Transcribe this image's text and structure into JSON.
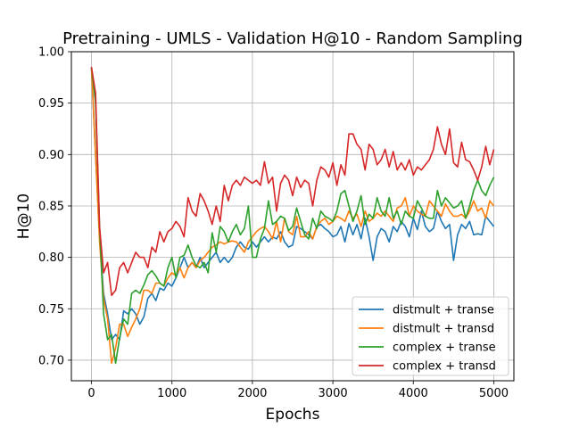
{
  "chart_data": {
    "type": "line",
    "title": "Pretraining - UMLS - Validation H@10 - Random Sampling",
    "xlabel": "Epochs",
    "ylabel": "H@10",
    "xlim": [
      -250,
      5250
    ],
    "ylim": [
      0.68,
      1.0
    ],
    "xticks": [
      0,
      1000,
      2000,
      3000,
      4000,
      5000
    ],
    "yticks": [
      0.7,
      0.75,
      0.8,
      0.85,
      0.9,
      0.95,
      1.0
    ],
    "xtick_labels": [
      "0",
      "1000",
      "2000",
      "3000",
      "4000",
      "5000"
    ],
    "ytick_labels": [
      "0.70",
      "0.75",
      "0.80",
      "0.85",
      "0.90",
      "0.95",
      "1.00"
    ],
    "grid": true,
    "legend_position": "lower-right",
    "x": [
      0,
      50,
      100,
      150,
      200,
      250,
      300,
      350,
      400,
      450,
      500,
      550,
      600,
      650,
      700,
      750,
      800,
      850,
      900,
      950,
      1000,
      1050,
      1100,
      1150,
      1200,
      1250,
      1300,
      1350,
      1400,
      1450,
      1500,
      1550,
      1600,
      1650,
      1700,
      1750,
      1800,
      1850,
      1900,
      1950,
      2000,
      2050,
      2100,
      2150,
      2200,
      2250,
      2300,
      2350,
      2400,
      2450,
      2500,
      2550,
      2600,
      2650,
      2700,
      2750,
      2800,
      2850,
      2900,
      2950,
      3000,
      3050,
      3100,
      3150,
      3200,
      3250,
      3300,
      3350,
      3400,
      3450,
      3500,
      3550,
      3600,
      3650,
      3700,
      3750,
      3800,
      3850,
      3900,
      3950,
      4000,
      4050,
      4100,
      4150,
      4200,
      4250,
      4300,
      4350,
      4400,
      4450,
      4500,
      4550,
      4600,
      4650,
      4700,
      4750,
      4800,
      4850,
      4900,
      4950,
      5000
    ],
    "series": [
      {
        "name": "distmult + transe",
        "color": "#1f77b4",
        "values": [
          0.985,
          0.9,
          0.82,
          0.765,
          0.745,
          0.72,
          0.725,
          0.72,
          0.748,
          0.745,
          0.75,
          0.745,
          0.735,
          0.742,
          0.76,
          0.765,
          0.758,
          0.77,
          0.768,
          0.775,
          0.772,
          0.78,
          0.79,
          0.8,
          0.79,
          0.795,
          0.79,
          0.8,
          0.79,
          0.795,
          0.8,
          0.805,
          0.795,
          0.8,
          0.795,
          0.8,
          0.81,
          0.815,
          0.81,
          0.808,
          0.815,
          0.81,
          0.815,
          0.82,
          0.815,
          0.82,
          0.818,
          0.825,
          0.815,
          0.81,
          0.812,
          0.83,
          0.828,
          0.825,
          0.822,
          0.818,
          0.83,
          0.832,
          0.828,
          0.825,
          0.82,
          0.822,
          0.83,
          0.815,
          0.833,
          0.822,
          0.832,
          0.818,
          0.838,
          0.82,
          0.797,
          0.82,
          0.828,
          0.825,
          0.815,
          0.83,
          0.825,
          0.835,
          0.83,
          0.82,
          0.838,
          0.827,
          0.845,
          0.83,
          0.825,
          0.828,
          0.845,
          0.835,
          0.828,
          0.832,
          0.797,
          0.822,
          0.832,
          0.828,
          0.835,
          0.822,
          0.823,
          0.822,
          0.84,
          0.835,
          0.83
        ]
      },
      {
        "name": "distmult + transd",
        "color": "#ff7f0e",
        "values": [
          0.985,
          0.9,
          0.815,
          0.76,
          0.74,
          0.697,
          0.712,
          0.735,
          0.735,
          0.723,
          0.732,
          0.74,
          0.75,
          0.768,
          0.768,
          0.765,
          0.775,
          0.775,
          0.772,
          0.78,
          0.785,
          0.782,
          0.79,
          0.78,
          0.79,
          0.795,
          0.79,
          0.797,
          0.8,
          0.805,
          0.81,
          0.812,
          0.815,
          0.813,
          0.815,
          0.816,
          0.815,
          0.81,
          0.805,
          0.815,
          0.82,
          0.825,
          0.828,
          0.83,
          0.825,
          0.818,
          0.835,
          0.815,
          0.838,
          0.825,
          0.822,
          0.84,
          0.82,
          0.82,
          0.825,
          0.818,
          0.83,
          0.835,
          0.838,
          0.832,
          0.835,
          0.84,
          0.838,
          0.835,
          0.845,
          0.838,
          0.842,
          0.83,
          0.845,
          0.835,
          0.838,
          0.843,
          0.84,
          0.845,
          0.84,
          0.835,
          0.848,
          0.85,
          0.858,
          0.84,
          0.85,
          0.845,
          0.842,
          0.84,
          0.855,
          0.85,
          0.845,
          0.84,
          0.852,
          0.845,
          0.84,
          0.84,
          0.842,
          0.838,
          0.845,
          0.855,
          0.845,
          0.848,
          0.838,
          0.855,
          0.85
        ]
      },
      {
        "name": "complex + transe",
        "color": "#2ca02c",
        "values": [
          0.985,
          0.95,
          0.83,
          0.745,
          0.72,
          0.725,
          0.697,
          0.722,
          0.74,
          0.735,
          0.765,
          0.768,
          0.765,
          0.773,
          0.783,
          0.787,
          0.782,
          0.775,
          0.772,
          0.79,
          0.8,
          0.78,
          0.8,
          0.802,
          0.812,
          0.8,
          0.792,
          0.79,
          0.795,
          0.785,
          0.824,
          0.805,
          0.83,
          0.825,
          0.815,
          0.825,
          0.832,
          0.822,
          0.828,
          0.85,
          0.8,
          0.8,
          0.818,
          0.828,
          0.855,
          0.832,
          0.835,
          0.84,
          0.838,
          0.826,
          0.83,
          0.848,
          0.835,
          0.822,
          0.818,
          0.838,
          0.828,
          0.845,
          0.84,
          0.838,
          0.835,
          0.845,
          0.862,
          0.865,
          0.85,
          0.835,
          0.845,
          0.86,
          0.832,
          0.842,
          0.838,
          0.858,
          0.845,
          0.84,
          0.858,
          0.838,
          0.845,
          0.832,
          0.845,
          0.84,
          0.838,
          0.855,
          0.848,
          0.84,
          0.838,
          0.838,
          0.865,
          0.85,
          0.858,
          0.853,
          0.848,
          0.85,
          0.855,
          0.838,
          0.85,
          0.865,
          0.875,
          0.865,
          0.86,
          0.87,
          0.878
        ]
      },
      {
        "name": "complex + transd",
        "color": "#d62728",
        "values": [
          0.985,
          0.96,
          0.83,
          0.785,
          0.795,
          0.763,
          0.768,
          0.79,
          0.795,
          0.785,
          0.795,
          0.805,
          0.8,
          0.8,
          0.79,
          0.81,
          0.805,
          0.825,
          0.815,
          0.825,
          0.828,
          0.835,
          0.83,
          0.82,
          0.858,
          0.845,
          0.84,
          0.862,
          0.855,
          0.845,
          0.832,
          0.85,
          0.835,
          0.87,
          0.855,
          0.87,
          0.875,
          0.87,
          0.878,
          0.875,
          0.872,
          0.875,
          0.87,
          0.893,
          0.872,
          0.878,
          0.845,
          0.872,
          0.88,
          0.875,
          0.86,
          0.878,
          0.868,
          0.875,
          0.872,
          0.85,
          0.875,
          0.888,
          0.885,
          0.878,
          0.892,
          0.87,
          0.89,
          0.88,
          0.92,
          0.92,
          0.91,
          0.905,
          0.885,
          0.91,
          0.905,
          0.89,
          0.895,
          0.905,
          0.888,
          0.903,
          0.885,
          0.892,
          0.885,
          0.895,
          0.88,
          0.888,
          0.885,
          0.89,
          0.895,
          0.905,
          0.927,
          0.91,
          0.9,
          0.925,
          0.892,
          0.888,
          0.912,
          0.895,
          0.893,
          0.885,
          0.875,
          0.888,
          0.908,
          0.89,
          0.905
        ]
      }
    ]
  }
}
